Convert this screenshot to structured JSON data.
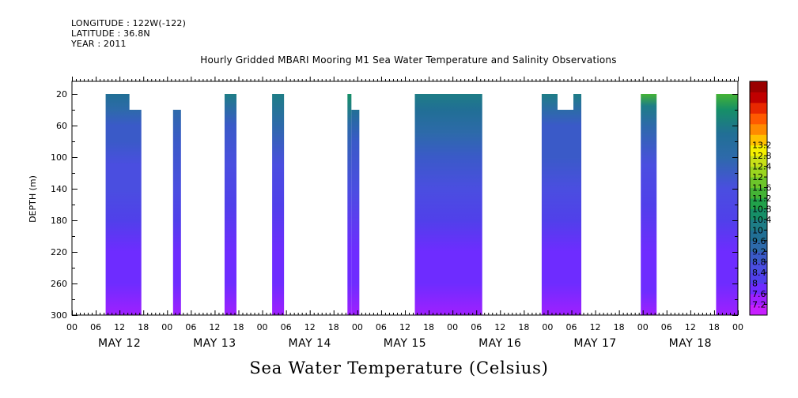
{
  "header": {
    "longitude": "LONGITUDE : 122W(-122)",
    "latitude": "LATITUDE : 36.8N",
    "year": "YEAR : 2011"
  },
  "title": "Hourly Gridded MBARI Mooring M1 Sea Water Temperature and Salinity Observations",
  "bottom_title": "Sea Water Temperature (Celsius)",
  "chart_data": {
    "type": "heatmap",
    "title": "Hourly Gridded MBARI Mooring M1 Sea Water Temperature and Salinity Observations",
    "colorbar_label": "Sea Water Temperature (Celsius)",
    "xlabel": "",
    "ylabel": "DEPTH (m)",
    "xlim_hours": [
      0,
      168
    ],
    "ylim": [
      300,
      4
    ],
    "x_tick_hours_step": 6,
    "x_tick_labels": [
      "00",
      "06",
      "12",
      "18",
      "00",
      "06",
      "12",
      "18",
      "00",
      "06",
      "12",
      "18",
      "00",
      "06",
      "12",
      "18",
      "00",
      "06",
      "12",
      "18",
      "00",
      "06",
      "12",
      "18",
      "00",
      "06",
      "12",
      "18",
      "00"
    ],
    "day_labels": [
      "MAY 12",
      "MAY 13",
      "MAY 14",
      "MAY 15",
      "MAY 16",
      "MAY 17",
      "MAY 18"
    ],
    "y_ticks": [
      20,
      60,
      100,
      140,
      180,
      220,
      260,
      300
    ],
    "colorbar": {
      "levels": [
        7.2,
        7.6,
        8,
        8.4,
        8.8,
        9.2,
        9.6,
        10,
        10.4,
        10.8,
        11.2,
        11.6,
        12,
        12.4,
        12.8,
        13.2
      ],
      "labels": [
        "7.2",
        "7.6",
        "8",
        "8.4",
        "8.8",
        "9.2",
        "9.6",
        "10",
        "10.4",
        "10.8",
        "11.2",
        "11.6",
        "12",
        "12.4",
        "12.8",
        "13.2"
      ],
      "colors": [
        "#c71fff",
        "#9f20ff",
        "#6e2cff",
        "#5040ea",
        "#4a4ee0",
        "#3a5ac8",
        "#2d6aaa",
        "#216f95",
        "#1e7d86",
        "#168f67",
        "#21a14a",
        "#44b335",
        "#6cc52a",
        "#9bd51f",
        "#c8e018",
        "#f5f000",
        "#ffc000",
        "#ff8a00",
        "#ff5a00",
        "#e82800",
        "#c00000",
        "#9a0000"
      ]
    },
    "segments": [
      {
        "start_hour": 8.5,
        "end_hour": 17.5,
        "top_depth": 20,
        "notch": {
          "start_hour": 14.5,
          "end_hour": 17.5,
          "top_depth": 40
        },
        "profile": [
          [
            20,
            9.9
          ],
          [
            40,
            9.5
          ],
          [
            60,
            9.1
          ],
          [
            80,
            8.8
          ],
          [
            110,
            8.6
          ],
          [
            140,
            8.4
          ],
          [
            180,
            8.1
          ],
          [
            220,
            7.9
          ],
          [
            260,
            7.6
          ],
          [
            300,
            7.3
          ]
        ]
      },
      {
        "start_hour": 25.5,
        "end_hour": 27.5,
        "top_depth": 40,
        "profile": [
          [
            40,
            9.2
          ],
          [
            80,
            8.8
          ],
          [
            140,
            8.4
          ],
          [
            180,
            8.1
          ],
          [
            220,
            7.9
          ],
          [
            260,
            7.6
          ],
          [
            300,
            7.4
          ]
        ]
      },
      {
        "start_hour": 38.5,
        "end_hour": 41.5,
        "top_depth": 20,
        "profile": [
          [
            20,
            10.0
          ],
          [
            60,
            9.1
          ],
          [
            110,
            8.6
          ],
          [
            160,
            8.2
          ],
          [
            220,
            7.9
          ],
          [
            260,
            7.6
          ],
          [
            300,
            7.4
          ]
        ]
      },
      {
        "start_hour": 50.5,
        "end_hour": 53.5,
        "top_depth": 20,
        "profile": [
          [
            20,
            10.3
          ],
          [
            60,
            9.2
          ],
          [
            110,
            8.7
          ],
          [
            160,
            8.2
          ],
          [
            220,
            7.9
          ],
          [
            260,
            7.6
          ],
          [
            300,
            7.4
          ]
        ]
      },
      {
        "start_hour": 69.5,
        "end_hour": 70.5,
        "top_depth": 20,
        "profile": [
          [
            20,
            10.4
          ],
          [
            60,
            9.2
          ],
          [
            140,
            8.4
          ],
          [
            220,
            7.9
          ],
          [
            260,
            7.6
          ],
          [
            300,
            7.3
          ]
        ]
      },
      {
        "start_hour": 70.5,
        "end_hour": 72.5,
        "top_depth": 40,
        "profile": [
          [
            40,
            9.6
          ],
          [
            80,
            9.0
          ],
          [
            140,
            8.4
          ],
          [
            220,
            7.9
          ],
          [
            260,
            7.6
          ],
          [
            300,
            7.4
          ]
        ]
      },
      {
        "start_hour": 86.5,
        "end_hour": 103.5,
        "top_depth": 20,
        "profile": [
          [
            20,
            10.2
          ],
          [
            40,
            9.8
          ],
          [
            70,
            9.2
          ],
          [
            100,
            8.9
          ],
          [
            140,
            8.5
          ],
          [
            180,
            8.1
          ],
          [
            220,
            7.9
          ],
          [
            260,
            7.7
          ],
          [
            300,
            7.5
          ]
        ]
      },
      {
        "start_hour": 118.5,
        "end_hour": 128.5,
        "top_depth": 20,
        "notch": {
          "start_hour": 122.5,
          "end_hour": 126.5,
          "top_depth": 40
        },
        "profile": [
          [
            20,
            10.1
          ],
          [
            60,
            9.1
          ],
          [
            100,
            8.8
          ],
          [
            140,
            8.5
          ],
          [
            180,
            8.2
          ],
          [
            220,
            7.9
          ],
          [
            260,
            7.6
          ],
          [
            300,
            7.3
          ]
        ]
      },
      {
        "start_hour": 143.5,
        "end_hour": 147.5,
        "top_depth": 20,
        "profile": [
          [
            20,
            11.2
          ],
          [
            35,
            10.3
          ],
          [
            60,
            9.2
          ],
          [
            110,
            8.6
          ],
          [
            160,
            8.2
          ],
          [
            220,
            7.9
          ],
          [
            270,
            7.6
          ],
          [
            300,
            7.4
          ]
        ]
      },
      {
        "start_hour": 162.5,
        "end_hour": 168.0,
        "top_depth": 20,
        "profile": [
          [
            20,
            11.3
          ],
          [
            40,
            10.6
          ],
          [
            70,
            9.8
          ],
          [
            100,
            9.2
          ],
          [
            140,
            8.6
          ],
          [
            180,
            8.2
          ],
          [
            220,
            7.9
          ],
          [
            260,
            7.7
          ],
          [
            300,
            7.5
          ]
        ]
      }
    ]
  }
}
